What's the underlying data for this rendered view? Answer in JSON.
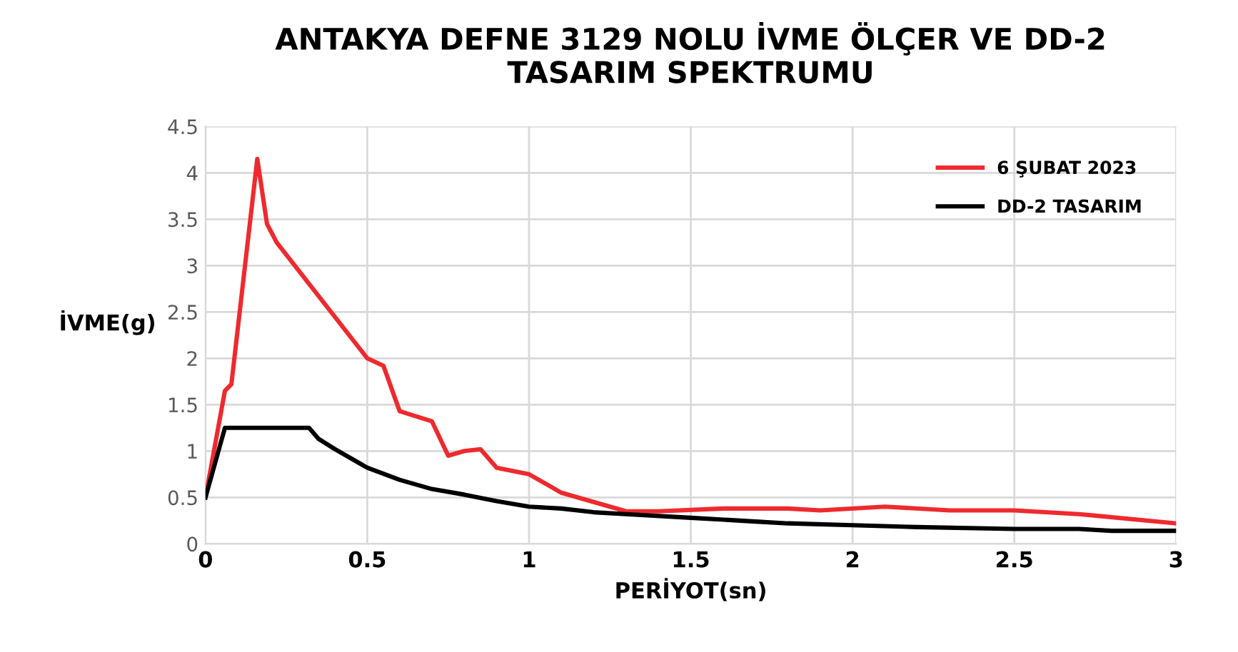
{
  "chart_data": {
    "type": "line",
    "title": "ANTAKYA DEFNE 3129 NOLU İVME ÖLÇER VE DD-2\nTASARIM SPEKTRUMU",
    "xlabel": "PERİYOT(sn)",
    "ylabel": "İVME(g)",
    "series": [
      {
        "name": "6 ŞUBAT 2023",
        "color": "#ee2a2e",
        "x": [
          0,
          0.06,
          0.08,
          0.16,
          0.19,
          0.22,
          0.5,
          0.55,
          0.6,
          0.7,
          0.75,
          0.8,
          0.85,
          0.9,
          1.0,
          1.1,
          1.2,
          1.3,
          1.4,
          1.6,
          1.8,
          1.9,
          2.1,
          2.3,
          2.5,
          2.7,
          3.0
        ],
        "values": [
          0.5,
          1.65,
          1.72,
          4.15,
          3.45,
          3.25,
          2.0,
          1.92,
          1.43,
          1.32,
          0.95,
          1.0,
          1.02,
          0.82,
          0.75,
          0.55,
          0.45,
          0.35,
          0.35,
          0.38,
          0.38,
          0.36,
          0.4,
          0.36,
          0.36,
          0.32,
          0.22
        ]
      },
      {
        "name": "DD-2 TASARIM",
        "color": "#000000",
        "x": [
          0,
          0.06,
          0.32,
          0.35,
          0.4,
          0.5,
          0.6,
          0.7,
          0.8,
          0.9,
          1.0,
          1.1,
          1.2,
          1.3,
          1.5,
          1.7,
          1.8,
          2.0,
          2.2,
          2.5,
          2.7,
          2.8,
          3.0
        ],
        "values": [
          0.5,
          1.25,
          1.25,
          1.13,
          1.02,
          0.82,
          0.69,
          0.59,
          0.53,
          0.46,
          0.4,
          0.38,
          0.34,
          0.32,
          0.28,
          0.24,
          0.22,
          0.2,
          0.18,
          0.16,
          0.16,
          0.14,
          0.14
        ]
      }
    ],
    "xlim": [
      0,
      3
    ],
    "xticks": [
      0,
      0.5,
      1,
      1.5,
      2,
      2.5,
      3
    ],
    "ylim": [
      0,
      4.5
    ],
    "yticks": [
      0,
      0.5,
      1,
      1.5,
      2,
      2.5,
      3,
      3.5,
      4,
      4.5
    ],
    "grid": true,
    "legend": "top right",
    "marker": "none",
    "line_style": "solid"
  }
}
